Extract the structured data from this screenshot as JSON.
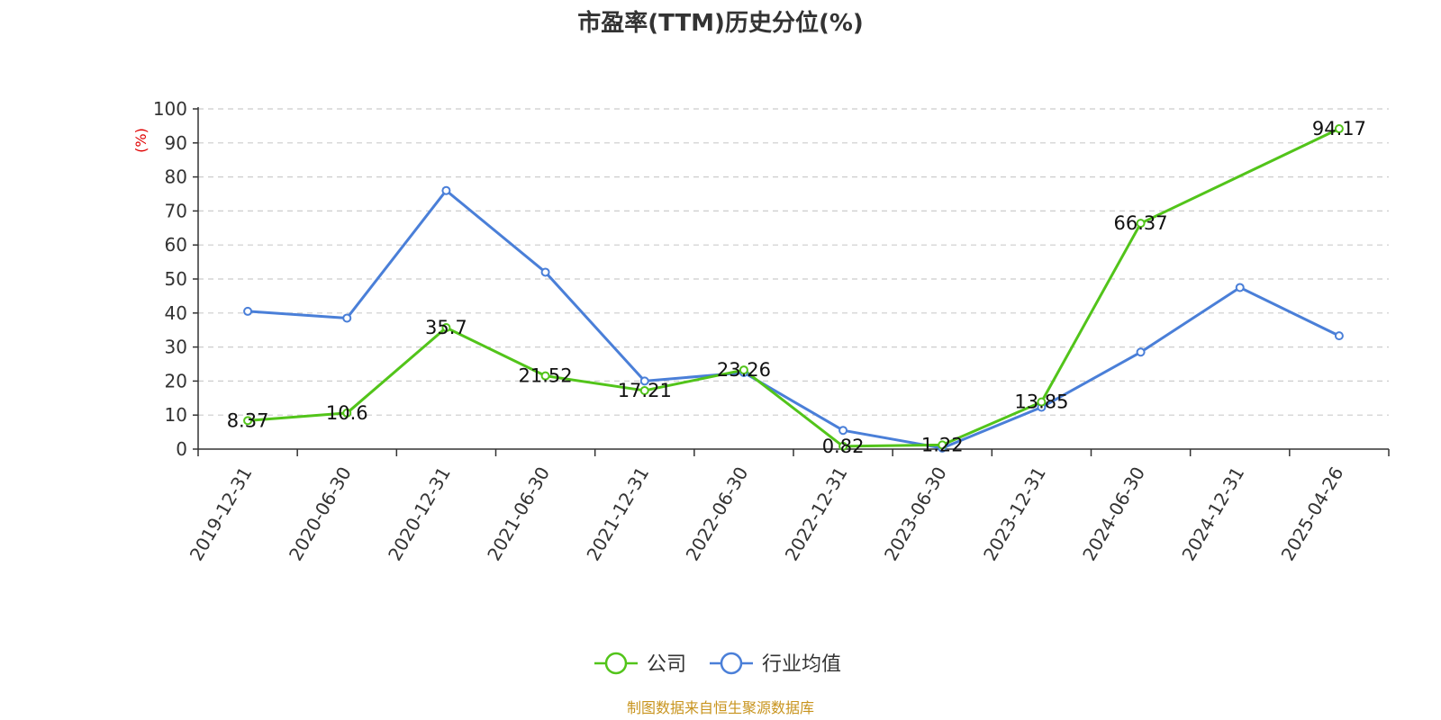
{
  "chart_data": {
    "type": "line",
    "title": "市盈率(TTM)历史分位(%)",
    "ylabel": "(%)",
    "ylim": [
      0,
      100
    ],
    "yticks": [
      0,
      10,
      20,
      30,
      40,
      50,
      60,
      70,
      80,
      90,
      100
    ],
    "categories": [
      "2019-12-31",
      "2020-06-30",
      "2020-12-31",
      "2021-06-30",
      "2021-12-31",
      "2022-06-30",
      "2022-12-31",
      "2023-06-30",
      "2023-12-31",
      "2024-06-30",
      "2024-12-31",
      "2025-04-26"
    ],
    "grid": true,
    "legend_position": "bottom",
    "series": [
      {
        "name": "公司",
        "color": "#52c41a",
        "values": [
          8.37,
          10.6,
          35.7,
          21.52,
          17.21,
          23.26,
          0.82,
          1.22,
          13.85,
          66.37,
          null,
          94.17
        ],
        "labels": [
          "8.37",
          "10.6",
          "35.7",
          "21.52",
          "17.21",
          "23.26",
          "0.82",
          "1.22",
          "13.85",
          "66.37",
          "",
          "94.17"
        ]
      },
      {
        "name": "行业均值",
        "color": "#4a7fd8",
        "values": [
          40.5,
          38.5,
          76,
          52,
          20,
          22.5,
          5.5,
          0.3,
          12.3,
          28.5,
          47.5,
          33.3
        ]
      }
    ],
    "source": "制图数据来自恒生聚源数据库"
  }
}
